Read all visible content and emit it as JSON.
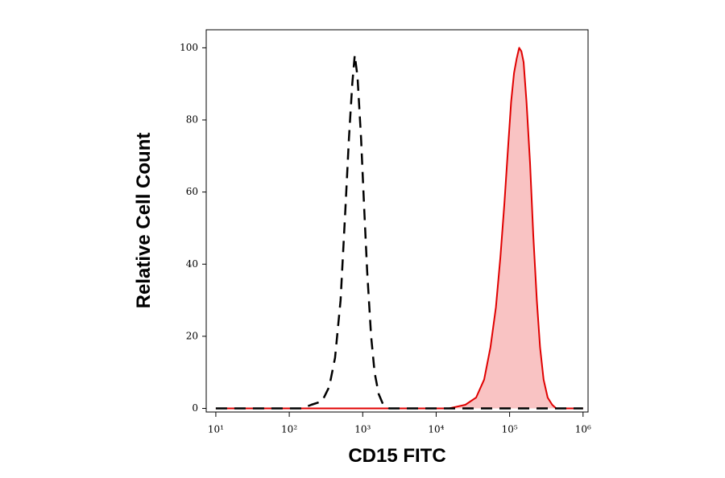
{
  "chart_data": {
    "type": "histogram-overlay",
    "x_label": "CD15 FITC",
    "y_label": "Relative Cell Count",
    "x_log": true,
    "xlim": [
      7.4,
      1170000
    ],
    "ylim": [
      -1,
      105
    ],
    "xticks": [
      {
        "value": 10,
        "label": "10¹"
      },
      {
        "value": 100,
        "label": "10²"
      },
      {
        "value": 1000,
        "label": "10³"
      },
      {
        "value": 10000,
        "label": "10⁴"
      },
      {
        "value": 100000,
        "label": "10⁵"
      },
      {
        "value": 1000000,
        "label": "10⁶"
      }
    ],
    "yticks": [
      0,
      20,
      40,
      60,
      80,
      100
    ],
    "series": [
      {
        "color": "#000000",
        "dashed": true,
        "filled": false,
        "x": [
          10,
          150,
          200,
          280,
          350,
          420,
          500,
          580,
          650,
          720,
          780,
          850,
          950,
          1050,
          1150,
          1300,
          1450,
          1650,
          1900,
          2300,
          1000000
        ],
        "values": [
          0,
          0,
          1,
          2,
          6,
          14,
          30,
          55,
          75,
          90,
          98,
          92,
          75,
          55,
          38,
          20,
          10,
          4,
          1,
          0,
          0
        ]
      },
      {
        "color": "#e00000",
        "fill": "#f9c3c3",
        "dashed": false,
        "filled": true,
        "x": [
          10,
          15000,
          25000,
          35000,
          45000,
          55000,
          65000,
          75000,
          85000,
          95000,
          105000,
          115000,
          125000,
          135000,
          145000,
          155000,
          170000,
          190000,
          210000,
          235000,
          260000,
          290000,
          330000,
          380000,
          430000,
          1000000
        ],
        "values": [
          0,
          0,
          1,
          3,
          8,
          17,
          28,
          42,
          57,
          72,
          85,
          93,
          97,
          100,
          99,
          96,
          85,
          68,
          48,
          30,
          17,
          8,
          3,
          1,
          0,
          0
        ]
      }
    ]
  }
}
